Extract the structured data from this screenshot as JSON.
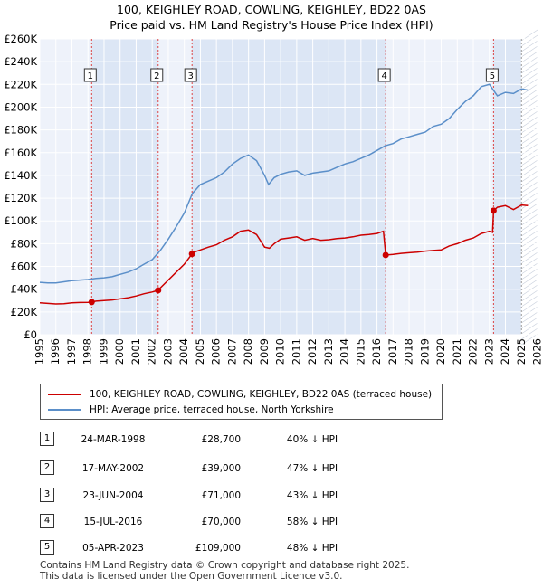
{
  "colors": {
    "property": "#cc0000",
    "hpi": "#5b8fc9",
    "shade": "#dce6f5",
    "grid": "#ffffff",
    "plot_bg": "#eef2fa"
  },
  "titles": {
    "line1": "100, KEIGHLEY ROAD, COWLING, KEIGHLEY, BD22 0AS",
    "line2": "Price paid vs. HM Land Registry's House Price Index (HPI)"
  },
  "legend": {
    "property_label": "100, KEIGHLEY ROAD, COWLING, KEIGHLEY, BD22 0AS (terraced house)",
    "hpi_label": "HPI: Average price, terraced house, North Yorkshire"
  },
  "sales": [
    {
      "num": "1",
      "date": "24-MAR-1998",
      "price": "£28,700",
      "hpi": "40% ↓ HPI"
    },
    {
      "num": "2",
      "date": "17-MAY-2002",
      "price": "£39,000",
      "hpi": "47% ↓ HPI"
    },
    {
      "num": "3",
      "date": "23-JUN-2004",
      "price": "£71,000",
      "hpi": "43% ↓ HPI"
    },
    {
      "num": "4",
      "date": "15-JUL-2016",
      "price": "£70,000",
      "hpi": "58% ↓ HPI"
    },
    {
      "num": "5",
      "date": "05-APR-2023",
      "price": "£109,000",
      "hpi": "48% ↓ HPI"
    }
  ],
  "footer": {
    "line1": "Contains HM Land Registry data © Crown copyright and database right 2025.",
    "line2": "This data is licensed under the Open Government Licence v3.0."
  },
  "chart_data": {
    "type": "line",
    "title": "100, KEIGHLEY ROAD, COWLING, KEIGHLEY, BD22 0AS",
    "subtitle": "Price paid vs. HM Land Registry's House Price Index (HPI)",
    "xlabel": "",
    "ylabel": "",
    "xlim": [
      1995,
      2026
    ],
    "ylim": [
      0,
      260000
    ],
    "x_ticks": [
      1995,
      1996,
      1997,
      1998,
      1999,
      2000,
      2001,
      2002,
      2003,
      2004,
      2005,
      2006,
      2007,
      2008,
      2009,
      2010,
      2011,
      2012,
      2013,
      2014,
      2015,
      2016,
      2017,
      2018,
      2019,
      2020,
      2021,
      2022,
      2023,
      2024,
      2025,
      2026
    ],
    "y_ticks": [
      0,
      20000,
      40000,
      60000,
      80000,
      100000,
      120000,
      140000,
      160000,
      180000,
      200000,
      220000,
      240000,
      260000
    ],
    "y_tick_labels": [
      "£0",
      "£20K",
      "£40K",
      "£60K",
      "£80K",
      "£100K",
      "£120K",
      "£140K",
      "£160K",
      "£180K",
      "£200K",
      "£220K",
      "£240K",
      "£260K"
    ],
    "shaded_bands": [
      [
        1998.23,
        1998.23
      ],
      [
        2002.37,
        2002.37
      ],
      [
        2004.48,
        2004.48
      ],
      [
        2016.54,
        2016.54
      ],
      [
        2023.26,
        2023.26
      ],
      [
        2025.0,
        2026.0
      ]
    ],
    "sale_markers": [
      {
        "num": "1",
        "x": 1998.23,
        "y": 28700
      },
      {
        "num": "2",
        "x": 2002.37,
        "y": 39000
      },
      {
        "num": "3",
        "x": 2004.48,
        "y": 71000
      },
      {
        "num": "4",
        "x": 2016.54,
        "y": 70000
      },
      {
        "num": "5",
        "x": 2023.26,
        "y": 109000
      }
    ],
    "series": [
      {
        "name": "100, KEIGHLEY ROAD, COWLING, KEIGHLEY, BD22 0AS (terraced house)",
        "color": "#cc0000",
        "x": [
          1995,
          1995.5,
          1996,
          1996.5,
          1997,
          1997.5,
          1998,
          1998.23,
          1998.5,
          1999,
          1999.5,
          2000,
          2000.5,
          2001,
          2001.5,
          2002,
          2002.37,
          2002.5,
          2003,
          2003.5,
          2004,
          2004.48,
          2004.5,
          2005,
          2005.5,
          2006,
          2006.5,
          2007,
          2007.5,
          2008,
          2008.5,
          2009,
          2009.3,
          2009.6,
          2010,
          2010.5,
          2011,
          2011.5,
          2012,
          2012.5,
          2013,
          2013.5,
          2014,
          2014.5,
          2015,
          2015.5,
          2016,
          2016.4,
          2016.54,
          2017,
          2017.5,
          2018,
          2018.5,
          2019,
          2019.5,
          2020,
          2020.5,
          2021,
          2021.5,
          2022,
          2022.5,
          2023,
          2023.2,
          2023.26,
          2023.5,
          2024,
          2024.5,
          2025,
          2025.4
        ],
        "values": [
          28000,
          27500,
          27000,
          27300,
          28000,
          28300,
          28500,
          28700,
          29500,
          30000,
          30500,
          31500,
          32500,
          34000,
          36000,
          37500,
          39000,
          41000,
          48000,
          55000,
          62000,
          71000,
          72000,
          74500,
          77000,
          79000,
          83000,
          86000,
          91000,
          92000,
          88000,
          77000,
          76000,
          80000,
          84000,
          85000,
          86000,
          83000,
          84500,
          83000,
          83500,
          84500,
          85000,
          86000,
          87500,
          88000,
          89000,
          91000,
          70000,
          70500,
          71500,
          72000,
          72500,
          73500,
          74000,
          74500,
          78000,
          80000,
          83000,
          85000,
          89000,
          91000,
          90000,
          109000,
          112000,
          113500,
          110000,
          114000,
          113500
        ]
      },
      {
        "name": "HPI: Average price, terraced house, North Yorkshire",
        "color": "#5b8fc9",
        "x": [
          1995,
          1995.5,
          1996,
          1996.5,
          1997,
          1997.5,
          1998,
          1998.5,
          1999,
          1999.5,
          2000,
          2000.5,
          2001,
          2001.5,
          2002,
          2002.5,
          2003,
          2003.5,
          2004,
          2004.5,
          2005,
          2005.5,
          2006,
          2006.5,
          2007,
          2007.5,
          2008,
          2008.5,
          2009,
          2009.25,
          2009.6,
          2010,
          2010.5,
          2011,
          2011.5,
          2012,
          2012.5,
          2013,
          2013.5,
          2014,
          2014.5,
          2015,
          2015.5,
          2016,
          2016.5,
          2017,
          2017.5,
          2018,
          2018.5,
          2019,
          2019.5,
          2020,
          2020.5,
          2021,
          2021.5,
          2022,
          2022.5,
          2023,
          2023.5,
          2024,
          2024.5,
          2025,
          2025.4
        ],
        "values": [
          46000,
          45500,
          45500,
          46500,
          47500,
          48000,
          48500,
          49500,
          50000,
          51000,
          53000,
          55000,
          58000,
          62000,
          66000,
          74000,
          84000,
          95000,
          107000,
          124000,
          132000,
          135000,
          138000,
          143000,
          150000,
          155000,
          158000,
          153000,
          140000,
          132000,
          138000,
          141000,
          143000,
          144000,
          140000,
          142000,
          143000,
          144000,
          147000,
          150000,
          152000,
          155000,
          158000,
          162000,
          166000,
          168000,
          172000,
          174000,
          176000,
          178000,
          183000,
          185000,
          190000,
          198000,
          205000,
          210000,
          218000,
          220000,
          210000,
          213000,
          212000,
          216000,
          215000
        ]
      }
    ]
  }
}
